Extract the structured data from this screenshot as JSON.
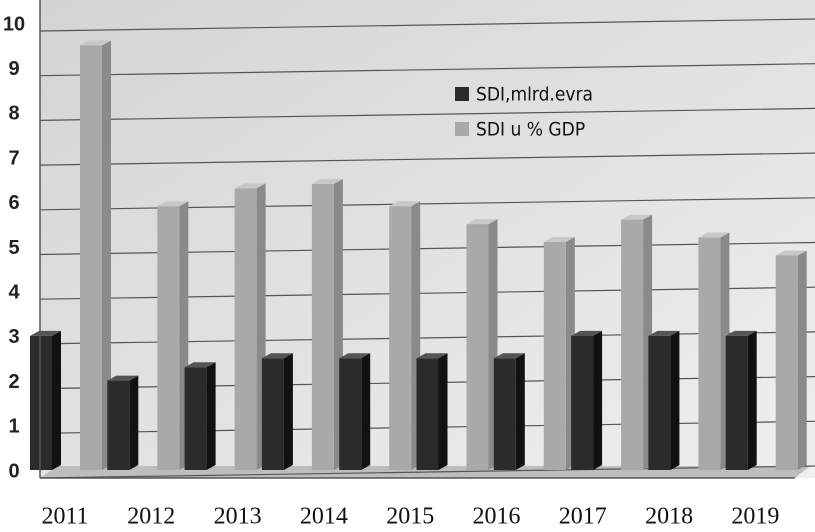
{
  "chart_data": {
    "type": "bar",
    "categories": [
      "2011",
      "2012",
      "2013",
      "2014",
      "2015",
      "2016",
      "2017",
      "2018",
      "2019",
      null
    ],
    "series": [
      {
        "name": "SDI,mlrd.evra",
        "color": "#2b2b2b",
        "values": [
          3,
          2,
          2.3,
          2.5,
          2.5,
          2.5,
          2.5,
          3,
          3,
          3
        ]
      },
      {
        "name": "SDI u % GDP",
        "color": "#a9a9a9",
        "values": [
          9.5,
          5.9,
          6.3,
          6.4,
          5.9,
          5.5,
          5.1,
          5.6,
          5.2,
          4.8
        ]
      }
    ],
    "ylim": [
      0,
      10
    ],
    "yticks": [
      0,
      1,
      2,
      3,
      4,
      5,
      6,
      7,
      8,
      9,
      10
    ],
    "grid": true,
    "legend": "top-right"
  }
}
